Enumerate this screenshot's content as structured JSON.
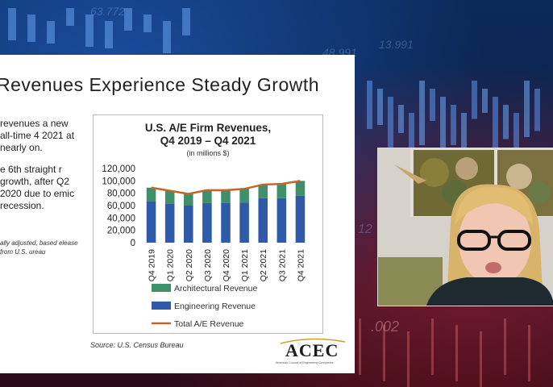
{
  "background": {
    "numbers": [
      "63.772",
      "48.991",
      "13.991",
      ".002",
      "12"
    ]
  },
  "slide": {
    "title": "Revenues Experience Steady Growth",
    "bullets": [
      "revenues a new all-time 4 2021 at nearly on.",
      "e 6th straight r growth, after Q2 2020 due to emic recession."
    ],
    "footnote": "ally adjusted, based elease from U.S. ureau",
    "source": "Source: U.S. Census Bureau",
    "logo": {
      "name": "ACEC",
      "subtitle": "American Council of Engineering Companies"
    }
  },
  "chart_data": {
    "type": "bar",
    "title": "U.S. A/E Firm Revenues,",
    "title_line2": "Q4 2019 – Q4 2021",
    "subtitle": "(in millions $)",
    "categories": [
      "Q4 2019",
      "Q1 2020",
      "Q2 2020",
      "Q3 2020",
      "Q4 2020",
      "Q1 2021",
      "Q2 2021",
      "Q3 2021",
      "Q4 2021"
    ],
    "series": [
      {
        "name": "Engineering Revenue",
        "color": "#2e5aa8",
        "values": [
          67000,
          63000,
          60000,
          64000,
          64000,
          65000,
          72000,
          72000,
          76000
        ]
      },
      {
        "name": "Architectural Revenue",
        "color": "#3e8f6a",
        "values": [
          22000,
          21000,
          19000,
          21000,
          21000,
          22000,
          22000,
          23000,
          24000
        ]
      },
      {
        "name": "Total A/E Revenue",
        "color": "#c0662a",
        "values": [
          89000,
          84000,
          79000,
          85000,
          85000,
          87000,
          94000,
          95000,
          100000
        ],
        "kind": "line"
      }
    ],
    "ylim": [
      0,
      120000
    ],
    "yticks": [
      "0",
      "20,000",
      "40,000",
      "60,000",
      "80,000",
      "100,000",
      "120,000"
    ],
    "legend": [
      "Architectural Revenue",
      "Engineering Revenue",
      "Total A/E Revenue"
    ],
    "legend_position": "bottom",
    "grid": false
  }
}
